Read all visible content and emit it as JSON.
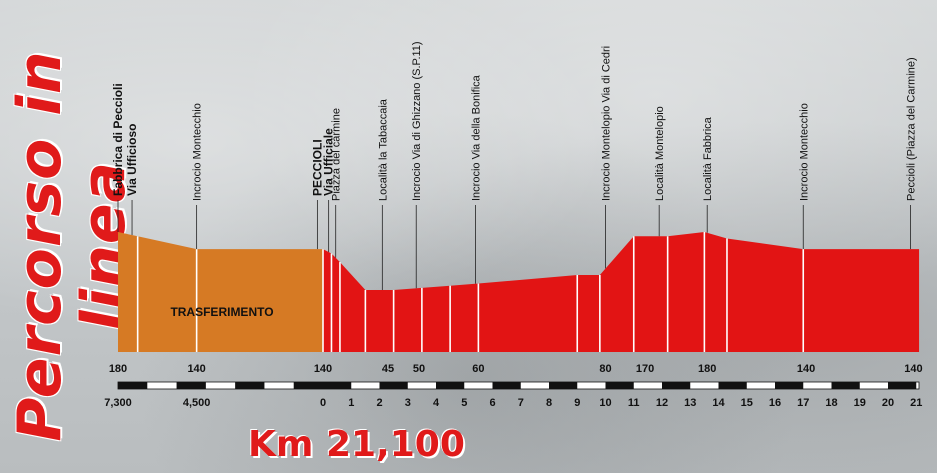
{
  "side_title": "Percorso in linea",
  "distance_label": "Km 21,100",
  "transfer_label": "TRASFERIMENTO",
  "colors": {
    "transfer": "#d67a24",
    "race": "#e21414",
    "title": "#e01a1a"
  },
  "chart_data": {
    "type": "area",
    "title": "",
    "xlabel": "",
    "ylabel": "",
    "transfer": {
      "x_labels": [
        "7,300",
        "4,500"
      ],
      "points": [
        {
          "d": 7.3,
          "alt": 180
        },
        {
          "d": 6.6,
          "alt": 170
        },
        {
          "d": 4.5,
          "alt": 140
        },
        {
          "d": 0.0,
          "alt": 140
        }
      ]
    },
    "race": {
      "x_ticks": [
        "0",
        "1",
        "2",
        "3",
        "4",
        "5",
        "6",
        "7",
        "8",
        "9",
        "10",
        "11",
        "12",
        "13",
        "14",
        "15",
        "16",
        "17",
        "18",
        "19",
        "20",
        "21"
      ],
      "xlim": [
        0,
        21.1
      ],
      "points": [
        {
          "x": 0.0,
          "alt": 140
        },
        {
          "x": 0.3,
          "alt": 130
        },
        {
          "x": 0.6,
          "alt": 110
        },
        {
          "x": 1.5,
          "alt": 45
        },
        {
          "x": 2.5,
          "alt": 45
        },
        {
          "x": 3.5,
          "alt": 50
        },
        {
          "x": 4.5,
          "alt": 55
        },
        {
          "x": 5.5,
          "alt": 60
        },
        {
          "x": 9.0,
          "alt": 80
        },
        {
          "x": 9.8,
          "alt": 80
        },
        {
          "x": 11.0,
          "alt": 170
        },
        {
          "x": 12.2,
          "alt": 170
        },
        {
          "x": 13.5,
          "alt": 180
        },
        {
          "x": 14.3,
          "alt": 165
        },
        {
          "x": 17.0,
          "alt": 140
        },
        {
          "x": 21.1,
          "alt": 140
        }
      ]
    },
    "altitude_labels": [
      {
        "text": "180",
        "x": -7.3
      },
      {
        "text": "140",
        "x": -4.5
      },
      {
        "text": "140",
        "x": 0.0
      },
      {
        "text": "45",
        "x": 2.3
      },
      {
        "text": "50",
        "x": 3.4
      },
      {
        "text": "60",
        "x": 5.5
      },
      {
        "text": "80",
        "x": 10.0
      },
      {
        "text": "170",
        "x": 11.4
      },
      {
        "text": "180",
        "x": 13.6
      },
      {
        "text": "140",
        "x": 17.1
      },
      {
        "text": "140",
        "x": 20.9
      }
    ],
    "poi": [
      {
        "label": "Fabbrica di Peccioli",
        "x": -7.3,
        "bold": true
      },
      {
        "label": "Via Ufficioso",
        "x": -6.8,
        "bold": true
      },
      {
        "label": "Incrocio Montecchio",
        "x": -4.5,
        "bold": false
      },
      {
        "label": "PECCIOLI",
        "x": -0.2,
        "bold": true
      },
      {
        "label": "Piazza del carmine",
        "x": 0.45,
        "bold": false
      },
      {
        "label": "Via Ufficiale",
        "x": 0.2,
        "bold": true
      },
      {
        "label": "Località la Tabaccaia",
        "x": 2.1,
        "bold": false
      },
      {
        "label": "Incrocio Via di Ghizzano (S.P.11)",
        "x": 3.3,
        "bold": false
      },
      {
        "label": "Incrocio Via della Bonifica",
        "x": 5.4,
        "bold": false
      },
      {
        "label": "Incrocio Montelopio Via di Cedri",
        "x": 10.0,
        "bold": false
      },
      {
        "label": "Località Montelopio",
        "x": 11.9,
        "bold": false
      },
      {
        "label": "Località Fabbrica",
        "x": 13.6,
        "bold": false
      },
      {
        "label": "Incrocio Montecchio",
        "x": 17.0,
        "bold": false
      },
      {
        "label": "Peccioli (Piazza del Carmine)",
        "x": 20.8,
        "bold": false
      }
    ]
  }
}
